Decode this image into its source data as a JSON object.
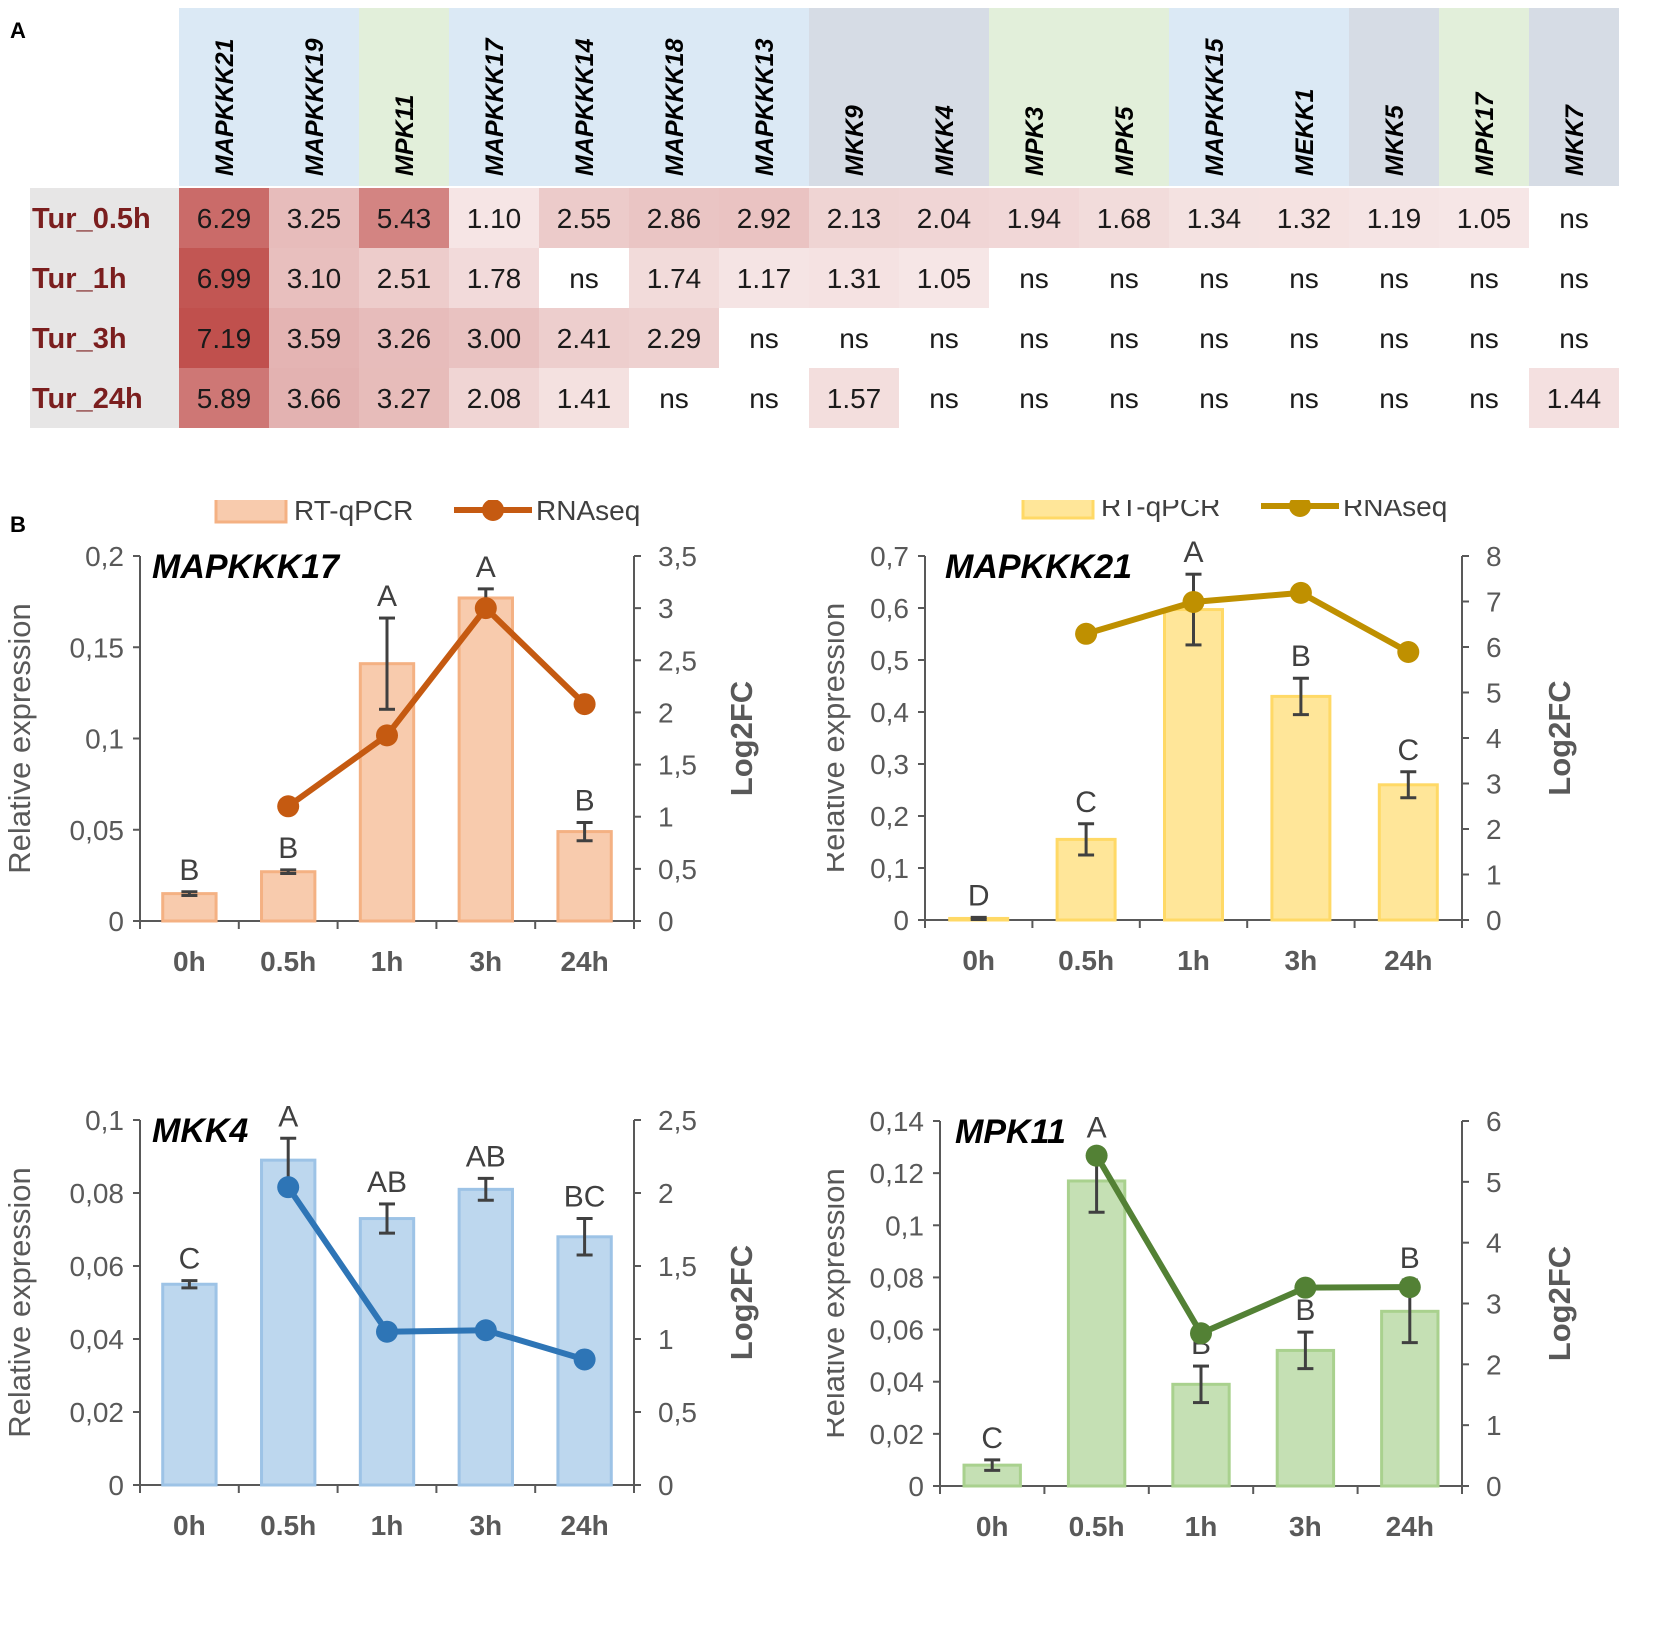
{
  "panels": {
    "a_label": "A",
    "b_label": "B"
  },
  "heatmap": {
    "genes": [
      {
        "name": "MAPKKK21",
        "group": "MAPKKK"
      },
      {
        "name": "MAPKKK19",
        "group": "MAPKKK"
      },
      {
        "name": "MPK11",
        "group": "MPK"
      },
      {
        "name": "MAPKKK17",
        "group": "MAPKKK"
      },
      {
        "name": "MAPKKK14",
        "group": "MAPKKK"
      },
      {
        "name": "MAPKKK18",
        "group": "MAPKKK"
      },
      {
        "name": "MAPKKK13",
        "group": "MAPKKK"
      },
      {
        "name": "MKK9",
        "group": "MKK"
      },
      {
        "name": "MKK4",
        "group": "MKK"
      },
      {
        "name": "MPK3",
        "group": "MPK"
      },
      {
        "name": "MPK5",
        "group": "MPK"
      },
      {
        "name": "MAPKKK15",
        "group": "MAPKKK"
      },
      {
        "name": "MEKK1",
        "group": "MAPKKK"
      },
      {
        "name": "MKK5",
        "group": "MKK"
      },
      {
        "name": "MPK17",
        "group": "MPK"
      },
      {
        "name": "MKK7",
        "group": "MKK"
      }
    ],
    "rows": [
      {
        "label": "Tur_0.5h",
        "values": [
          "6.29",
          "3.25",
          "5.43",
          "1.10",
          "2.55",
          "2.86",
          "2.92",
          "2.13",
          "2.04",
          "1.94",
          "1.68",
          "1.34",
          "1.32",
          "1.19",
          "1.05",
          "ns"
        ]
      },
      {
        "label": "Tur_1h",
        "values": [
          "6.99",
          "3.10",
          "2.51",
          "1.78",
          "ns",
          "1.74",
          "1.17",
          "1.31",
          "1.05",
          "ns",
          "ns",
          "ns",
          "ns",
          "ns",
          "ns",
          "ns"
        ]
      },
      {
        "label": "Tur_3h",
        "values": [
          "7.19",
          "3.59",
          "3.26",
          "3.00",
          "2.41",
          "2.29",
          "ns",
          "ns",
          "ns",
          "ns",
          "ns",
          "ns",
          "ns",
          "ns",
          "ns",
          "ns"
        ]
      },
      {
        "label": "Tur_24h",
        "values": [
          "5.89",
          "3.66",
          "3.27",
          "2.08",
          "1.41",
          "ns",
          "ns",
          "1.57",
          "ns",
          "ns",
          "ns",
          "ns",
          "ns",
          "ns",
          "ns",
          "1.44"
        ]
      }
    ],
    "group_colors": {
      "MAPKKK": "#dbe9f5",
      "MPK": "#e2efda",
      "MKK": "#d6dce5"
    },
    "row_label_bg": "#e7e6e6",
    "row_label_color": "#7b1e1e",
    "cell_color_max": "#c0504d",
    "value_max": 7.19
  },
  "chart_data": [
    {
      "type": "bar",
      "title": "MAPKKK17",
      "categories": [
        "0h",
        "0.5h",
        "1h",
        "3h",
        "24h"
      ],
      "ylabel": "Relative expression",
      "y2label": "Log2FC",
      "legend": [
        "RT-qPCR",
        "RNAseq"
      ],
      "bar_fill": "#f8cbad",
      "bar_stroke": "#f4b183",
      "line_color": "#c55a11",
      "ylim": [
        0,
        0.2
      ],
      "yticks": [
        0,
        0.05,
        0.1,
        0.15,
        0.2
      ],
      "ytick_labels": [
        "0",
        "0,05",
        "0,1",
        "0,15",
        "0,2"
      ],
      "y2lim": [
        0,
        3.5
      ],
      "y2ticks": [
        0,
        0.5,
        1,
        1.5,
        2,
        2.5,
        3,
        3.5
      ],
      "y2tick_labels": [
        "0",
        "0,5",
        "1",
        "1,5",
        "2",
        "2,5",
        "3",
        "3,5"
      ],
      "bar_values": [
        0.015,
        0.027,
        0.141,
        0.177,
        0.049
      ],
      "bar_errors": [
        0.001,
        0.001,
        0.025,
        0.005,
        0.005
      ],
      "letters": [
        "B",
        "B",
        "A",
        "A",
        "B"
      ],
      "line_values": [
        null,
        1.1,
        1.78,
        3.0,
        2.08
      ]
    },
    {
      "type": "bar",
      "title": "MAPKKK21",
      "categories": [
        "0h",
        "0.5h",
        "1h",
        "3h",
        "24h"
      ],
      "ylabel": "Relative expression",
      "y2label": "Log2FC",
      "legend": [
        "RT-qPCR",
        "RNAseq"
      ],
      "bar_fill": "#ffe699",
      "bar_stroke": "#ffd966",
      "line_color": "#bf9000",
      "ylim": [
        0,
        0.7
      ],
      "yticks": [
        0,
        0.1,
        0.2,
        0.3,
        0.4,
        0.5,
        0.6,
        0.7
      ],
      "ytick_labels": [
        "0",
        "0,1",
        "0,2",
        "0,3",
        "0,4",
        "0,5",
        "0,6",
        "0,7"
      ],
      "y2lim": [
        0,
        8
      ],
      "y2ticks": [
        0,
        1,
        2,
        3,
        4,
        5,
        6,
        7,
        8
      ],
      "y2tick_labels": [
        "0",
        "1",
        "2",
        "3",
        "4",
        "5",
        "6",
        "7",
        "8"
      ],
      "bar_values": [
        0.003,
        0.155,
        0.597,
        0.43,
        0.26
      ],
      "bar_errors": [
        0.002,
        0.03,
        0.068,
        0.035,
        0.025
      ],
      "letters": [
        "D",
        "C",
        "A",
        "B",
        "C"
      ],
      "line_values": [
        null,
        6.29,
        6.99,
        7.19,
        5.89
      ]
    },
    {
      "type": "bar",
      "title": "MKK4",
      "categories": [
        "0h",
        "0.5h",
        "1h",
        "3h",
        "24h"
      ],
      "ylabel": "Relative expression",
      "y2label": "Log2FC",
      "legend": [
        "RT-qPCR",
        "RNAseq"
      ],
      "bar_fill": "#bdd7ee",
      "bar_stroke": "#9dc3e6",
      "line_color": "#2e75b6",
      "ylim": [
        0,
        0.1
      ],
      "yticks": [
        0,
        0.02,
        0.04,
        0.06,
        0.08,
        0.1
      ],
      "ytick_labels": [
        "0",
        "0,02",
        "0,04",
        "0,06",
        "0,08",
        "0,1"
      ],
      "y2lim": [
        0,
        2.5
      ],
      "y2ticks": [
        0,
        0.5,
        1,
        1.5,
        2,
        2.5
      ],
      "y2tick_labels": [
        "0",
        "0,5",
        "1",
        "1,5",
        "2",
        "2,5"
      ],
      "bar_values": [
        0.055,
        0.089,
        0.073,
        0.081,
        0.068
      ],
      "bar_errors": [
        0.001,
        0.006,
        0.004,
        0.003,
        0.005
      ],
      "letters": [
        "C",
        "A",
        "AB",
        "AB",
        "BC"
      ],
      "line_values": [
        null,
        2.04,
        1.05,
        1.06,
        0.86
      ]
    },
    {
      "type": "bar",
      "title": "MPK11",
      "categories": [
        "0h",
        "0.5h",
        "1h",
        "3h",
        "24h"
      ],
      "ylabel": "Relative expression",
      "y2label": "Log2FC",
      "legend": [
        "RT-qPCR",
        "RNAseq"
      ],
      "bar_fill": "#c5e0b4",
      "bar_stroke": "#a9d18e",
      "line_color": "#538135",
      "ylim": [
        0,
        0.14
      ],
      "yticks": [
        0,
        0.02,
        0.04,
        0.06,
        0.08,
        0.1,
        0.12,
        0.14
      ],
      "ytick_labels": [
        "0",
        "0,02",
        "0,04",
        "0,06",
        "0,08",
        "0,1",
        "0,12",
        "0,14"
      ],
      "y2lim": [
        0,
        6
      ],
      "y2ticks": [
        0,
        1,
        2,
        3,
        4,
        5,
        6
      ],
      "y2tick_labels": [
        "0",
        "1",
        "2",
        "3",
        "4",
        "5",
        "6"
      ],
      "bar_values": [
        0.008,
        0.117,
        0.039,
        0.052,
        0.067
      ],
      "bar_errors": [
        0.002,
        0.012,
        0.007,
        0.007,
        0.012
      ],
      "letters": [
        "C",
        "A",
        "B",
        "B",
        "B"
      ],
      "line_values": [
        null,
        5.43,
        2.51,
        3.26,
        3.27
      ]
    }
  ]
}
